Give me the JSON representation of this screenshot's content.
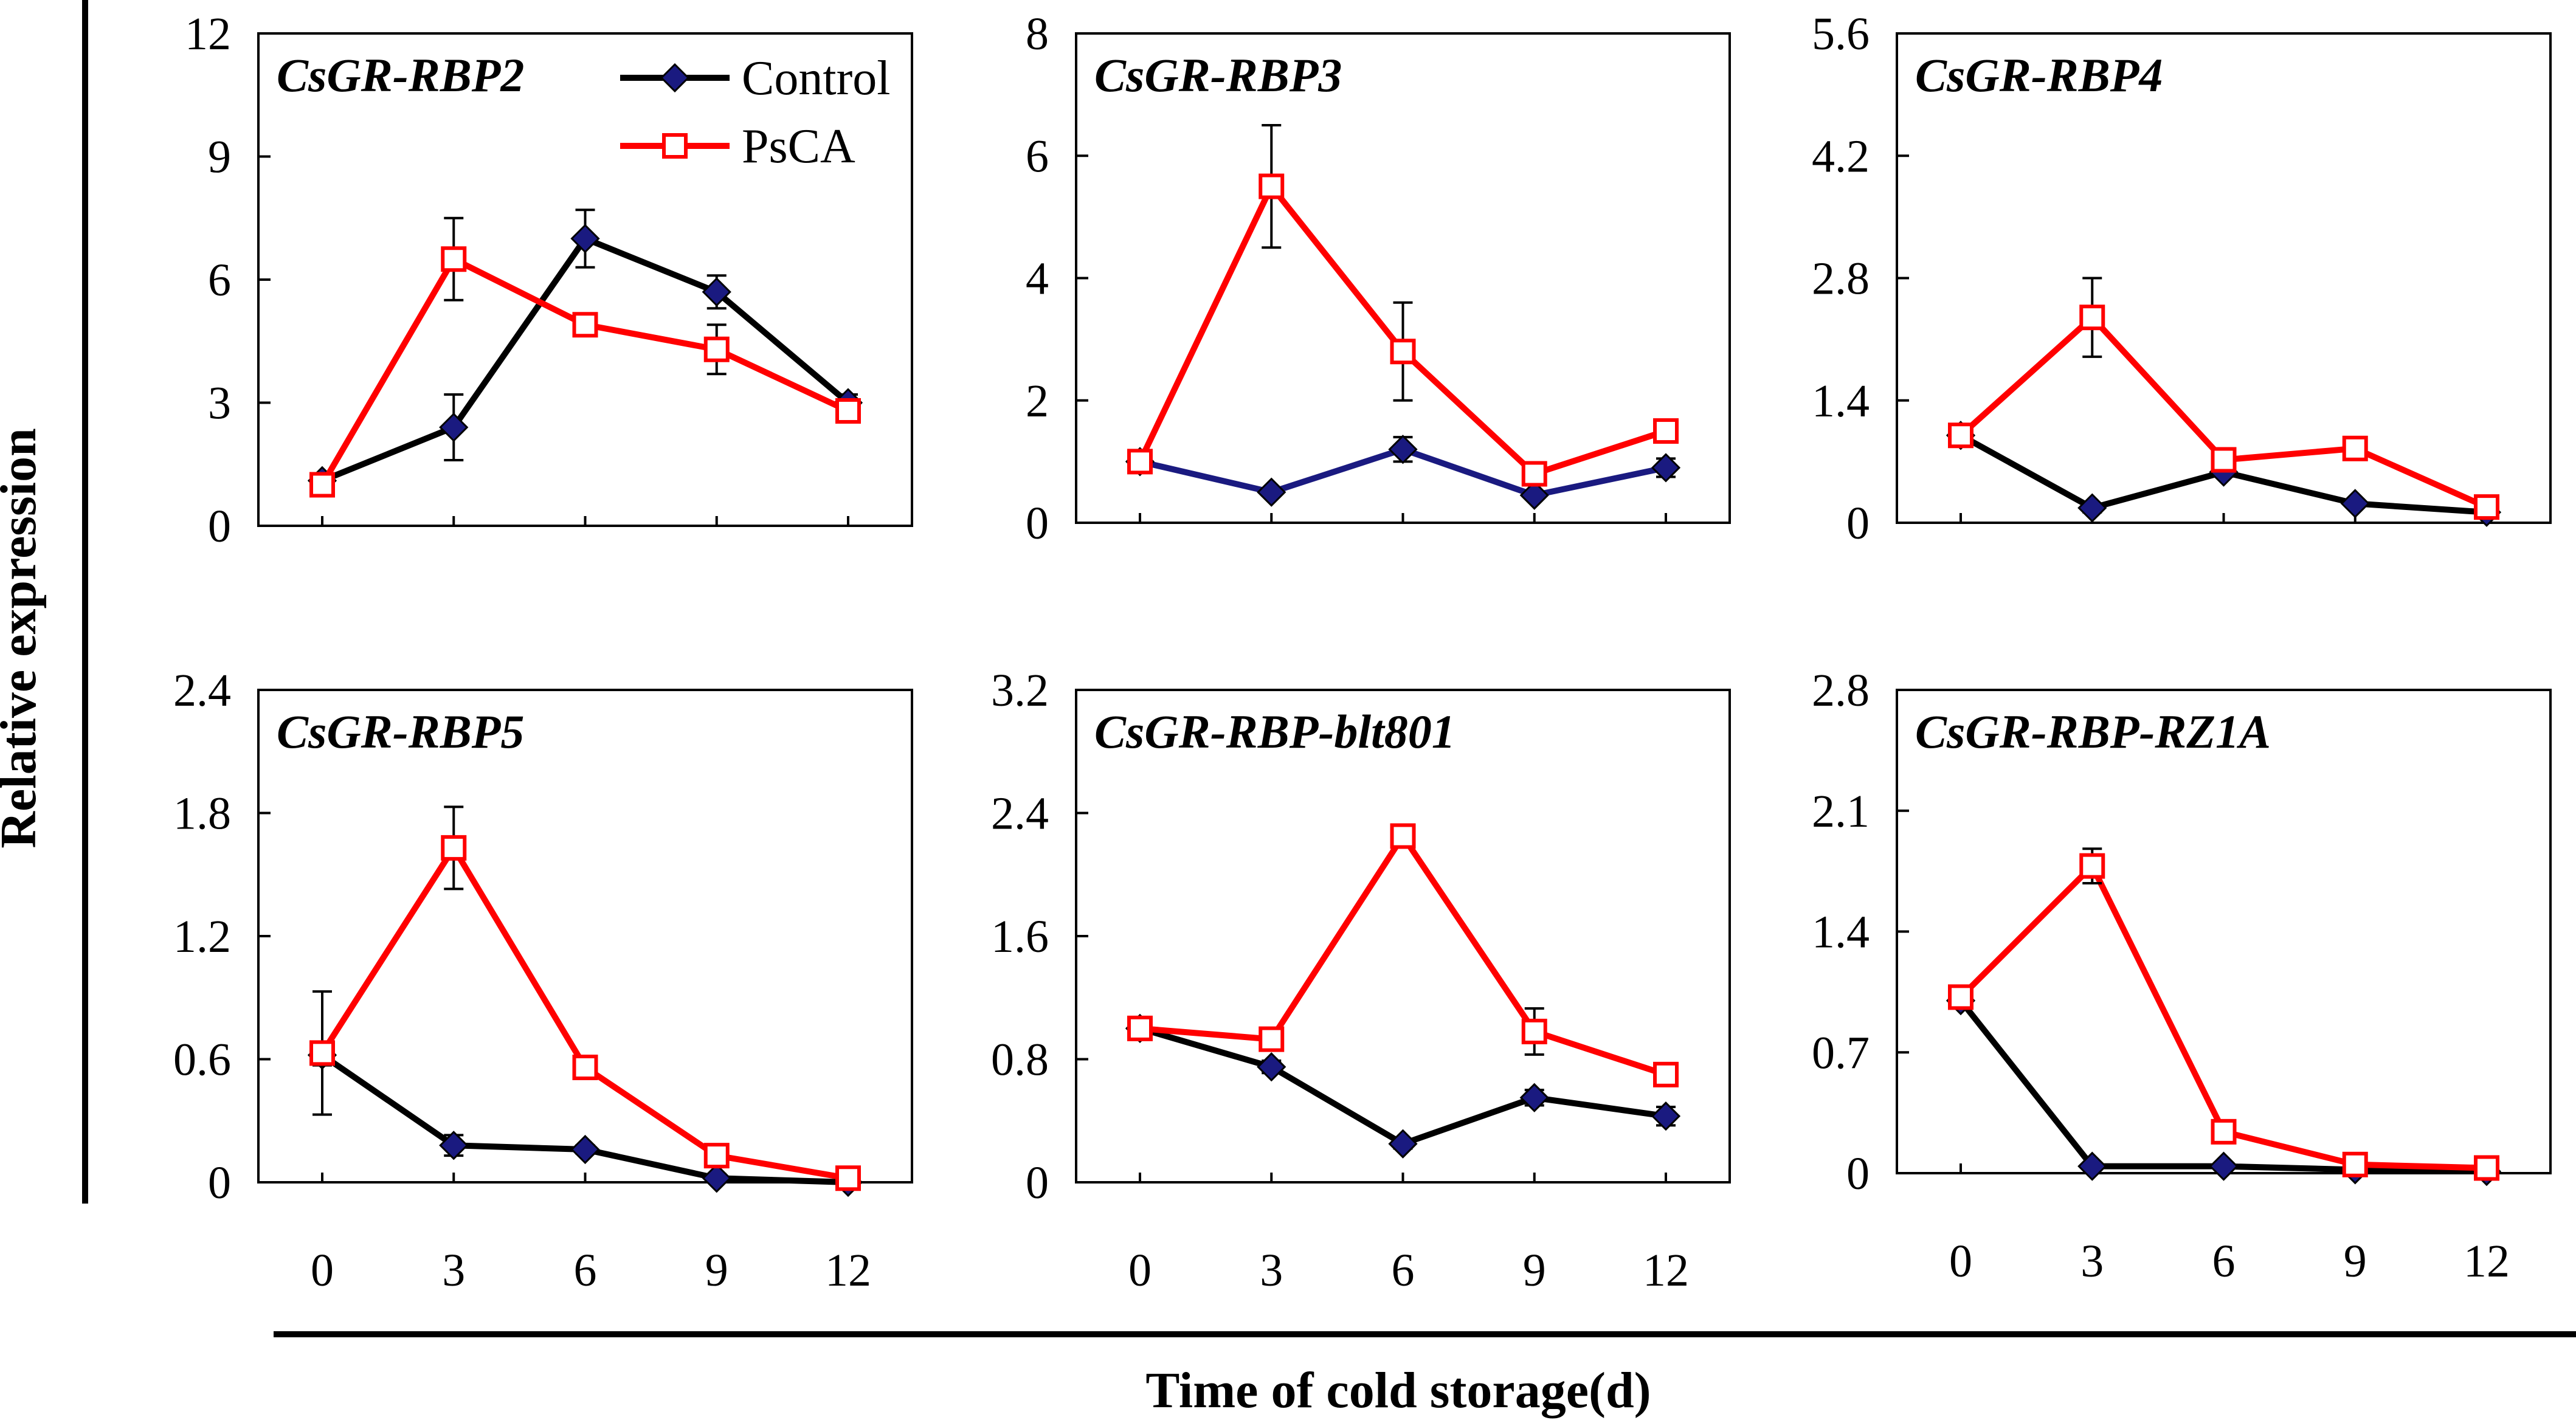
{
  "chart_data": {
    "type": "line",
    "ylabel": "Relative expression",
    "xlabel": "Time of cold storage(d)",
    "x": [
      0,
      3,
      6,
      9,
      12
    ],
    "legend": [
      {
        "name": "Control",
        "marker": "filled-diamond",
        "color": "#000000"
      },
      {
        "name": "PsCA",
        "marker": "open-square",
        "color": "#ff0000"
      }
    ],
    "panels": [
      {
        "title": "CsGR-RBP2",
        "yticks": [
          "0",
          "3",
          "6",
          "9",
          "12"
        ],
        "ylim": [
          0,
          12
        ],
        "series": [
          {
            "name": "Control",
            "line_color": "#000000",
            "values": [
              1.1,
              2.4,
              7.0,
              5.7,
              3.0
            ],
            "errors": [
              0.1,
              0.8,
              0.7,
              0.4,
              0.2
            ]
          },
          {
            "name": "PsCA",
            "line_color": "#ff0000",
            "values": [
              1.0,
              6.5,
              4.9,
              4.3,
              2.8
            ],
            "errors": [
              0.1,
              1.0,
              0.2,
              0.6,
              0.2
            ]
          }
        ]
      },
      {
        "title": "CsGR-RBP3",
        "yticks": [
          "0",
          "2",
          "4",
          "6",
          "8"
        ],
        "ylim": [
          0,
          8
        ],
        "series": [
          {
            "name": "Control",
            "line_color": "#1a1a80",
            "values": [
              1.0,
              0.5,
              1.2,
              0.45,
              0.9
            ],
            "errors": [
              0.1,
              0.05,
              0.2,
              0.05,
              0.15
            ]
          },
          {
            "name": "PsCA",
            "line_color": "#ff0000",
            "values": [
              1.0,
              5.5,
              2.8,
              0.8,
              1.5
            ],
            "errors": [
              0.1,
              1.0,
              0.8,
              0.1,
              0.1
            ]
          }
        ]
      },
      {
        "title": "CsGR-RBP4",
        "yticks": [
          "0",
          "1.4",
          "2.8",
          "4.2",
          "5.6"
        ],
        "ylim": [
          0,
          5.6
        ],
        "series": [
          {
            "name": "Control",
            "line_color": "#000000",
            "values": [
              1.0,
              0.17,
              0.58,
              0.22,
              0.12
            ],
            "errors": [
              0.08,
              0.05,
              0.05,
              0.04,
              0.03
            ]
          },
          {
            "name": "PsCA",
            "line_color": "#ff0000",
            "values": [
              1.0,
              2.35,
              0.72,
              0.85,
              0.18
            ],
            "errors": [
              0.08,
              0.45,
              0.05,
              0.05,
              0.03
            ]
          }
        ]
      },
      {
        "title": "CsGR-RBP5",
        "yticks": [
          "0",
          "0.6",
          "1.2",
          "1.8",
          "2.4"
        ],
        "ylim": [
          0,
          2.4
        ],
        "series": [
          {
            "name": "Control",
            "line_color": "#000000",
            "values": [
              0.62,
              0.18,
              0.16,
              0.02,
              0.0
            ],
            "errors": [
              0.05,
              0.05,
              0.02,
              0.02,
              0.01
            ]
          },
          {
            "name": "PsCA",
            "line_color": "#ff0000",
            "values": [
              0.63,
              1.63,
              0.56,
              0.13,
              0.02
            ],
            "errors": [
              0.3,
              0.2,
              0.03,
              0.02,
              0.01
            ]
          }
        ]
      },
      {
        "title": "CsGR-RBP-blt801",
        "yticks": [
          "0",
          "0.8",
          "1.6",
          "2.4",
          "3.2"
        ],
        "ylim": [
          0,
          3.2
        ],
        "series": [
          {
            "name": "Control",
            "line_color": "#000000",
            "values": [
              1.0,
              0.75,
              0.25,
              0.55,
              0.43
            ],
            "errors": [
              0.06,
              0.04,
              0.03,
              0.05,
              0.06
            ]
          },
          {
            "name": "PsCA",
            "line_color": "#ff0000",
            "values": [
              1.0,
              0.93,
              2.25,
              0.98,
              0.7
            ],
            "errors": [
              0.06,
              0.06,
              0.05,
              0.15,
              0.04
            ]
          }
        ]
      },
      {
        "title": "CsGR-RBP-RZ1A",
        "yticks": [
          "0",
          "0.7",
          "1.4",
          "2.1",
          "2.8"
        ],
        "ylim": [
          0,
          2.8
        ],
        "series": [
          {
            "name": "Control",
            "line_color": "#000000",
            "values": [
              1.0,
              0.04,
              0.04,
              0.02,
              0.01
            ],
            "errors": [
              0.04,
              0.02,
              0.02,
              0.01,
              0.01
            ]
          },
          {
            "name": "PsCA",
            "line_color": "#ff0000",
            "values": [
              1.02,
              1.78,
              0.24,
              0.05,
              0.03
            ],
            "errors": [
              0.04,
              0.1,
              0.04,
              0.01,
              0.01
            ]
          }
        ]
      }
    ]
  }
}
